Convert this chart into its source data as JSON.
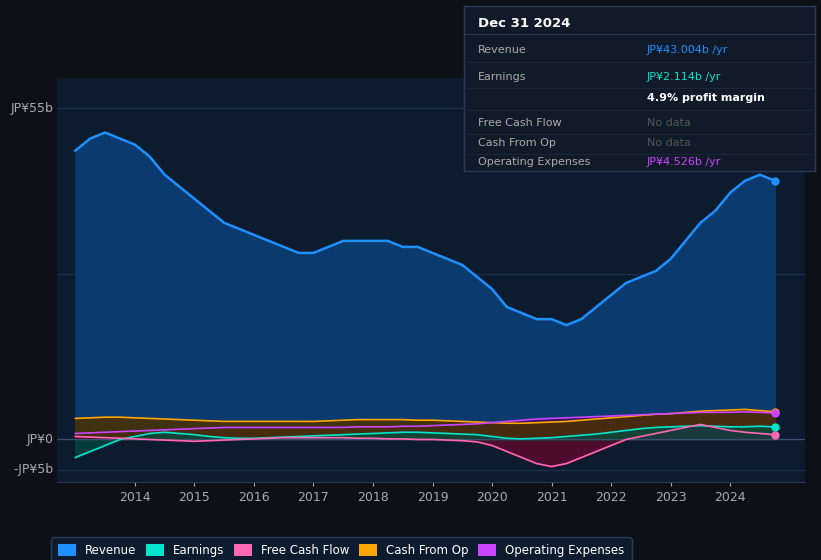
{
  "bg_color": "#0d1117",
  "plot_bg_color": "#0d1b2e",
  "grid_color": "#1e3050",
  "years": [
    2013.0,
    2013.25,
    2013.5,
    2013.75,
    2014.0,
    2014.25,
    2014.5,
    2014.75,
    2015.0,
    2015.25,
    2015.5,
    2015.75,
    2016.0,
    2016.25,
    2016.5,
    2016.75,
    2017.0,
    2017.25,
    2017.5,
    2017.75,
    2018.0,
    2018.25,
    2018.5,
    2018.75,
    2019.0,
    2019.25,
    2019.5,
    2019.75,
    2020.0,
    2020.25,
    2020.5,
    2020.75,
    2021.0,
    2021.25,
    2021.5,
    2021.75,
    2022.0,
    2022.25,
    2022.5,
    2022.75,
    2023.0,
    2023.25,
    2023.5,
    2023.75,
    2024.0,
    2024.25,
    2024.5,
    2024.75
  ],
  "revenue": [
    48,
    50,
    51,
    50,
    49,
    47,
    44,
    42,
    40,
    38,
    36,
    35,
    34,
    33,
    32,
    31,
    31,
    32,
    33,
    33,
    33,
    33,
    32,
    32,
    31,
    30,
    29,
    27,
    25,
    22,
    21,
    20,
    20,
    19,
    20,
    22,
    24,
    26,
    27,
    28,
    30,
    33,
    36,
    38,
    41,
    43,
    44,
    43
  ],
  "earnings": [
    -3,
    -2,
    -1,
    0,
    0.5,
    1,
    1.2,
    1,
    0.8,
    0.5,
    0.3,
    0.2,
    0.2,
    0.3,
    0.4,
    0.5,
    0.6,
    0.7,
    0.8,
    0.9,
    1,
    1.1,
    1.2,
    1.2,
    1.1,
    1,
    0.9,
    0.8,
    0.5,
    0.2,
    0.1,
    0.2,
    0.3,
    0.5,
    0.7,
    0.9,
    1.2,
    1.5,
    1.8,
    2,
    2.1,
    2.2,
    2.3,
    2.2,
    2.1,
    2.114,
    2.2,
    2.1
  ],
  "free_cash_flow": [
    0.5,
    0.4,
    0.3,
    0.2,
    0.1,
    0,
    -0.1,
    -0.2,
    -0.3,
    -0.2,
    -0.1,
    0,
    0.1,
    0.2,
    0.3,
    0.3,
    0.3,
    0.3,
    0.3,
    0.2,
    0.2,
    0.1,
    0.1,
    0,
    0,
    -0.1,
    -0.2,
    -0.4,
    -1,
    -2,
    -3,
    -4,
    -4.5,
    -4,
    -3,
    -2,
    -1,
    0,
    0.5,
    1,
    1.5,
    2,
    2.5,
    2,
    1.5,
    1.2,
    1,
    0.8
  ],
  "cash_from_op": [
    3.5,
    3.6,
    3.7,
    3.7,
    3.6,
    3.5,
    3.4,
    3.3,
    3.2,
    3.1,
    3.0,
    3.0,
    3.0,
    3.0,
    3.0,
    3.0,
    3.0,
    3.1,
    3.2,
    3.3,
    3.3,
    3.3,
    3.3,
    3.2,
    3.2,
    3.1,
    3.0,
    2.9,
    2.8,
    2.7,
    2.7,
    2.8,
    2.9,
    3.0,
    3.2,
    3.4,
    3.6,
    3.8,
    4.0,
    4.2,
    4.3,
    4.5,
    4.7,
    4.8,
    4.9,
    5.0,
    4.8,
    4.6
  ],
  "operating_expenses": [
    1,
    1.1,
    1.2,
    1.3,
    1.4,
    1.5,
    1.6,
    1.7,
    1.8,
    1.9,
    2.0,
    2.0,
    2.0,
    2.0,
    2.0,
    2.0,
    2.0,
    2.0,
    2.0,
    2.1,
    2.1,
    2.1,
    2.2,
    2.2,
    2.3,
    2.4,
    2.5,
    2.6,
    2.8,
    3.0,
    3.2,
    3.4,
    3.5,
    3.6,
    3.7,
    3.8,
    3.9,
    4.0,
    4.1,
    4.2,
    4.3,
    4.4,
    4.5,
    4.5,
    4.526,
    4.6,
    4.5,
    4.4
  ],
  "revenue_color": "#1e90ff",
  "revenue_fill": "#0a3a6e",
  "earnings_color": "#00e5cc",
  "earnings_fill": "#004d44",
  "fcf_color": "#ff69b4",
  "fcf_fill": "#5a0a30",
  "cfop_color": "#ffa500",
  "cfop_fill": "#4a3000",
  "opex_color": "#cc44ff",
  "opex_fill": "#3a0a5a",
  "ylim": [
    -7,
    60
  ],
  "xticks": [
    2014,
    2015,
    2016,
    2017,
    2018,
    2019,
    2020,
    2021,
    2022,
    2023,
    2024
  ],
  "legend_labels": [
    "Revenue",
    "Earnings",
    "Free Cash Flow",
    "Cash From Op",
    "Operating Expenses"
  ],
  "legend_colors": [
    "#1e90ff",
    "#00e5cc",
    "#ff69b4",
    "#ffa500",
    "#cc44ff"
  ],
  "box_bg": "#111a28",
  "box_border": "#2a3a55",
  "box_date": "Dec 31 2024",
  "box_rows": [
    {
      "label": "Revenue",
      "value": "JP¥43.004b /yr",
      "value_color": "#1e90ff"
    },
    {
      "label": "Earnings",
      "value": "JP¥2.114b /yr",
      "value_color": "#00e5cc"
    },
    {
      "label": "",
      "value": "4.9% profit margin",
      "value_color": "#ffffff"
    },
    {
      "label": "Free Cash Flow",
      "value": "No data",
      "value_color": "#555555"
    },
    {
      "label": "Cash From Op",
      "value": "No data",
      "value_color": "#555555"
    },
    {
      "label": "Operating Expenses",
      "value": "JP¥4.526b /yr",
      "value_color": "#cc44ff"
    }
  ]
}
